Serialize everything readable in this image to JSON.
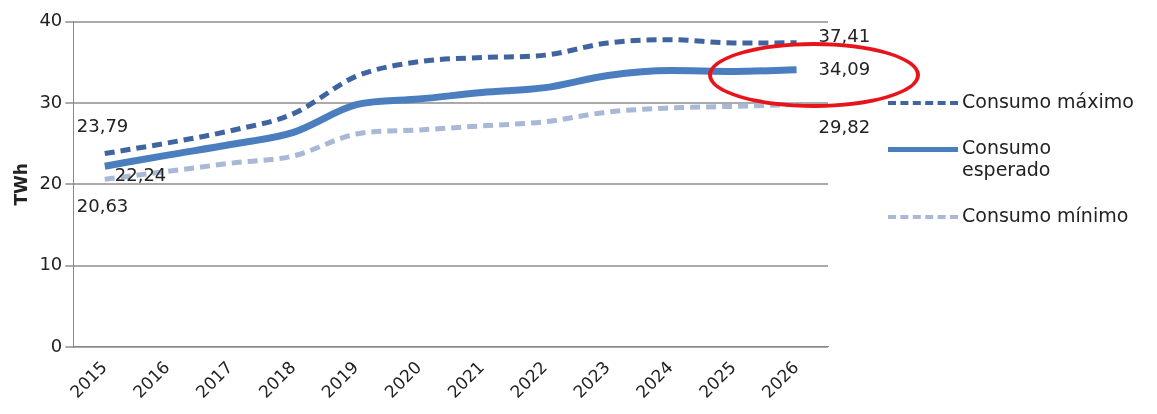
{
  "chart_data": {
    "type": "line",
    "ylabel": "TWh",
    "categories": [
      "2015",
      "2016",
      "2017",
      "2018",
      "2019",
      "2020",
      "2021",
      "2022",
      "2023",
      "2024",
      "2025",
      "2026"
    ],
    "ylim": [
      0,
      40
    ],
    "yticks": [
      0,
      10,
      20,
      30,
      40
    ],
    "grid": "y",
    "legend": "right",
    "marker": "none",
    "series": [
      {
        "name": "Consumo máximo",
        "color": "#3f64a0",
        "line_style": "dashed",
        "values": [
          23.79,
          25.1,
          26.6,
          28.7,
          33.3,
          35.1,
          35.6,
          35.9,
          37.4,
          37.8,
          37.4,
          37.41
        ],
        "value_labels": [
          "23,79",
          null,
          null,
          null,
          null,
          null,
          null,
          null,
          null,
          null,
          null,
          "37,41"
        ]
      },
      {
        "name": "Consumo esperado",
        "color": "#4a7ebf",
        "line_style": "solid",
        "values": [
          22.24,
          23.6,
          24.9,
          26.4,
          29.8,
          30.5,
          31.3,
          31.9,
          33.4,
          34.0,
          33.9,
          34.09
        ],
        "value_labels": [
          "22,24",
          null,
          null,
          null,
          null,
          null,
          null,
          null,
          null,
          null,
          null,
          "34,09"
        ]
      },
      {
        "name": "Consumo mínimo",
        "color": "#a9b8d6",
        "line_style": "dashed",
        "values": [
          20.63,
          21.6,
          22.6,
          23.5,
          26.2,
          26.7,
          27.2,
          27.7,
          28.9,
          29.4,
          29.6,
          29.82
        ],
        "value_labels": [
          "20,63",
          null,
          null,
          null,
          null,
          null,
          null,
          null,
          null,
          null,
          null,
          "29,82"
        ]
      }
    ]
  }
}
